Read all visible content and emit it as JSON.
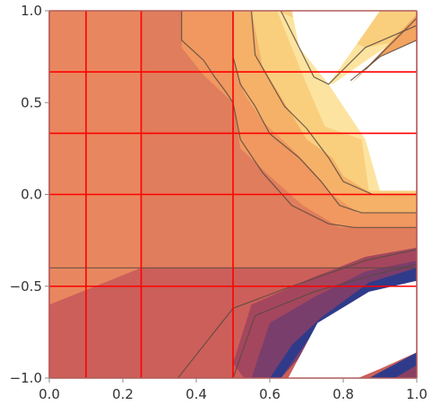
{
  "chart_data": {
    "type": "contour",
    "title": "",
    "xlabel": "",
    "ylabel": "",
    "xlim": [
      0.0,
      1.0
    ],
    "ylim": [
      -1.0,
      1.0
    ],
    "x_ticks": [
      "0.0",
      "0.2",
      "0.4",
      "0.6",
      "0.8",
      "1.0"
    ],
    "y_ticks": [
      "1.0",
      "0.5",
      "0.0",
      "−0.5",
      "−1.0"
    ],
    "x_tick_values": [
      0.0,
      0.2,
      0.4,
      0.6,
      0.8,
      1.0
    ],
    "y_tick_values": [
      1.0,
      0.5,
      0.0,
      -0.5,
      -1.0
    ],
    "grid_lines": {
      "color": "#ff0000",
      "x": [
        0.0,
        0.1,
        0.25,
        0.5,
        1.0
      ],
      "y": [
        1.0,
        0.667,
        0.333,
        0.0,
        -0.5,
        -1.0
      ]
    },
    "regions": [
      {
        "name": "base",
        "color": "#e07d5c",
        "points": [
          [
            0,
            1
          ],
          [
            1,
            1
          ],
          [
            1,
            -1
          ],
          [
            0,
            -1
          ]
        ]
      },
      {
        "name": "lower-left-light",
        "color": "#e8875f",
        "points": [
          [
            0,
            -0.6
          ],
          [
            0.25,
            -0.4
          ],
          [
            0.25,
            1
          ],
          [
            0,
            1
          ]
        ]
      },
      {
        "name": "lower-band",
        "color": "#cc5f5a",
        "points": [
          [
            0,
            -1
          ],
          [
            0,
            -0.6
          ],
          [
            0.25,
            -0.4
          ],
          [
            1,
            -0.4
          ],
          [
            1,
            -1
          ]
        ]
      },
      {
        "name": "level-orange",
        "color": "#f09860",
        "points": [
          [
            0.36,
            1
          ],
          [
            1,
            1
          ],
          [
            1,
            -0.18
          ],
          [
            0.79,
            -0.18
          ],
          [
            0.69,
            -0.06
          ],
          [
            0.6,
            0.1
          ],
          [
            0.52,
            0.25
          ],
          [
            0.5,
            0.5
          ],
          [
            0.42,
            0.65
          ],
          [
            0.36,
            0.8
          ]
        ]
      },
      {
        "name": "level-light-orange",
        "color": "#f5b168",
        "points": [
          [
            0.5,
            1
          ],
          [
            1,
            1
          ],
          [
            1,
            -0.1
          ],
          [
            0.84,
            -0.1
          ],
          [
            0.77,
            0.0
          ],
          [
            0.72,
            0.12
          ],
          [
            0.66,
            0.25
          ],
          [
            0.58,
            0.4
          ],
          [
            0.53,
            0.55
          ],
          [
            0.5,
            0.75
          ]
        ]
      },
      {
        "name": "level-yellow",
        "color": "#f9cf7e",
        "points": [
          [
            0.55,
            1
          ],
          [
            1,
            1
          ],
          [
            1,
            0.0
          ],
          [
            0.88,
            0.0
          ],
          [
            0.8,
            0.1
          ],
          [
            0.77,
            0.2
          ],
          [
            0.7,
            0.3
          ],
          [
            0.64,
            0.5
          ],
          [
            0.58,
            0.7
          ]
        ]
      },
      {
        "name": "level-pale",
        "color": "#fce4a0",
        "points": [
          [
            0.62,
            1
          ],
          [
            0.86,
            0.8
          ],
          [
            1,
            0.85
          ],
          [
            1,
            0.02
          ],
          [
            0.87,
            0.02
          ],
          [
            0.85,
            0.3
          ],
          [
            0.75,
            0.37
          ],
          [
            0.7,
            0.6
          ]
        ]
      },
      {
        "name": "white-top",
        "color": "#ffffff",
        "points": [
          [
            0.66,
            1
          ],
          [
            0.9,
            1
          ],
          [
            0.76,
            0.6
          ],
          [
            0.68,
            0.8
          ]
        ]
      },
      {
        "name": "white-right",
        "color": "#ffffff",
        "points": [
          [
            0.77,
            0.6
          ],
          [
            1,
            0.92
          ],
          [
            1,
            0.02
          ],
          [
            0.9,
            0.02
          ],
          [
            0.86,
            0.3
          ],
          [
            0.76,
            0.6
          ]
        ]
      },
      {
        "name": "top-right-orange",
        "color": "#f2a460",
        "points": [
          [
            0.82,
            0.6
          ],
          [
            1,
            0.98
          ],
          [
            1,
            0.84
          ],
          [
            0.9,
            0.75
          ]
        ]
      },
      {
        "name": "mid-purple",
        "color": "#a4475e",
        "points": [
          [
            0.5,
            -0.92
          ],
          [
            0.55,
            -0.6
          ],
          [
            0.72,
            -0.45
          ],
          [
            0.86,
            -0.34
          ],
          [
            1,
            -0.29
          ],
          [
            1,
            -0.6
          ],
          [
            0.86,
            -0.65
          ],
          [
            0.72,
            -0.75
          ],
          [
            0.62,
            -1
          ],
          [
            0.53,
            -1
          ]
        ]
      },
      {
        "name": "dark-purple",
        "color": "#7a3e6c",
        "points": [
          [
            0.55,
            -1
          ],
          [
            0.6,
            -0.7
          ],
          [
            0.72,
            -0.56
          ],
          [
            0.86,
            -0.42
          ],
          [
            1,
            -0.36
          ],
          [
            1,
            -0.62
          ],
          [
            0.86,
            -0.72
          ],
          [
            0.72,
            -0.8
          ],
          [
            0.63,
            -1
          ]
        ]
      },
      {
        "name": "deep-blue",
        "color": "#2f3b8a",
        "points": [
          [
            0.6,
            -1
          ],
          [
            0.66,
            -0.82
          ],
          [
            0.74,
            -0.67
          ],
          [
            0.87,
            -0.48
          ],
          [
            1,
            -0.4
          ],
          [
            1,
            -0.5
          ],
          [
            0.87,
            -0.57
          ],
          [
            0.73,
            -0.72
          ],
          [
            0.63,
            -1
          ]
        ]
      },
      {
        "name": "white-bottom",
        "color": "#ffffff",
        "points": [
          [
            0.65,
            -1
          ],
          [
            0.73,
            -0.7
          ],
          [
            0.87,
            -0.53
          ],
          [
            1,
            -0.47
          ],
          [
            1,
            -0.86
          ],
          [
            0.9,
            -0.95
          ],
          [
            0.84,
            -1
          ]
        ]
      },
      {
        "name": "bottom-corner-blue",
        "color": "#2f3b8a",
        "points": [
          [
            0.87,
            -1
          ],
          [
            1,
            -0.86
          ],
          [
            1,
            -1
          ]
        ]
      },
      {
        "name": "bottom-corner-purple",
        "color": "#8a3f62",
        "points": [
          [
            0.94,
            -1
          ],
          [
            1,
            -0.93
          ],
          [
            1,
            -1
          ]
        ]
      }
    ],
    "contour_lines": [
      {
        "color": "#5a4a3f",
        "points": [
          [
            0.36,
            1
          ],
          [
            0.36,
            0.84
          ],
          [
            0.42,
            0.73
          ],
          [
            0.45,
            0.64
          ],
          [
            0.48,
            0.56
          ],
          [
            0.5,
            0.5
          ],
          [
            0.52,
            0.3
          ],
          [
            0.58,
            0.12
          ],
          [
            0.66,
            -0.06
          ],
          [
            0.76,
            -0.16
          ],
          [
            0.83,
            -0.18
          ],
          [
            1,
            -0.18
          ]
        ]
      },
      {
        "color": "#5a4a3f",
        "points": [
          [
            0.5,
            1
          ],
          [
            0.5,
            0.75
          ],
          [
            0.52,
            0.6
          ],
          [
            0.56,
            0.48
          ],
          [
            0.6,
            0.33
          ],
          [
            0.68,
            0.2
          ],
          [
            0.74,
            0.07
          ],
          [
            0.79,
            -0.06
          ],
          [
            0.85,
            -0.1
          ],
          [
            1,
            -0.1
          ]
        ]
      },
      {
        "color": "#5a4a3f",
        "points": [
          [
            0.55,
            1
          ],
          [
            0.56,
            0.76
          ],
          [
            0.6,
            0.62
          ],
          [
            0.64,
            0.48
          ],
          [
            0.7,
            0.36
          ],
          [
            0.76,
            0.2
          ],
          [
            0.8,
            0.07
          ],
          [
            0.88,
            0.0
          ],
          [
            1,
            0.0
          ]
        ]
      },
      {
        "color": "#5a4a3f",
        "points": [
          [
            0.63,
            1
          ],
          [
            0.68,
            0.8
          ],
          [
            0.72,
            0.64
          ],
          [
            0.76,
            0.6
          ],
          [
            0.86,
            0.8
          ],
          [
            1,
            0.92
          ]
        ]
      },
      {
        "color": "#5a4a3f",
        "points": [
          [
            0.82,
            0.62
          ],
          [
            0.9,
            0.75
          ],
          [
            1,
            0.84
          ]
        ]
      },
      {
        "color": "#5a4a3f",
        "points": [
          [
            0.86,
            0.68
          ],
          [
            1,
            0.96
          ]
        ]
      },
      {
        "color": "#5a4a3f",
        "points": [
          [
            0,
            -0.4
          ],
          [
            0.25,
            -0.4
          ],
          [
            0.5,
            -0.4
          ],
          [
            0.75,
            -0.4
          ],
          [
            1,
            -0.4
          ]
        ]
      },
      {
        "color": "#5a4a3f",
        "points": [
          [
            0.35,
            -1
          ],
          [
            0.5,
            -0.62
          ],
          [
            0.66,
            -0.5
          ],
          [
            0.86,
            -0.36
          ],
          [
            1,
            -0.3
          ]
        ]
      },
      {
        "color": "#5a4a3f",
        "points": [
          [
            0.5,
            -1
          ],
          [
            0.56,
            -0.66
          ],
          [
            0.72,
            -0.53
          ],
          [
            0.88,
            -0.44
          ],
          [
            1,
            -0.38
          ]
        ]
      }
    ]
  }
}
